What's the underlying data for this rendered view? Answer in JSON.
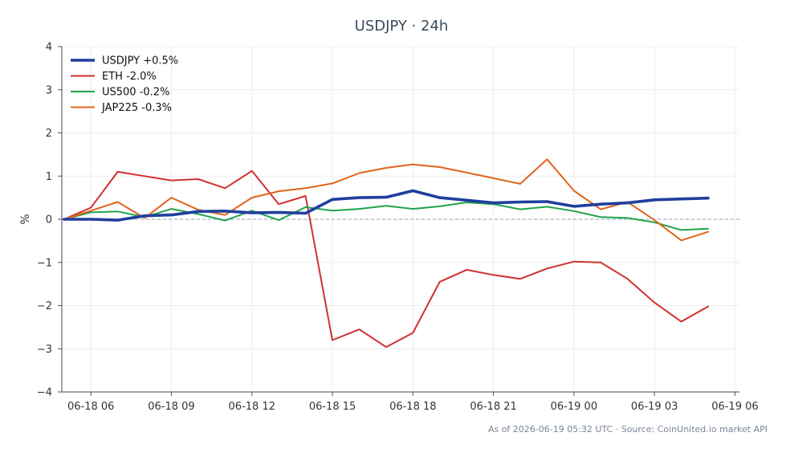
{
  "chart_data": {
    "type": "line",
    "title": "USDJPY · 24h",
    "ylabel": "%",
    "xlabel": "",
    "ylim": [
      -4,
      4
    ],
    "yticks": [
      -4,
      -3,
      -2,
      -1,
      0,
      1,
      2,
      3,
      4
    ],
    "ytick_labels": [
      "−4",
      "−3",
      "−2",
      "−1",
      "0",
      "1",
      "2",
      "3",
      "4"
    ],
    "xlim": [
      "06-18 04:55",
      "06-19 06:10"
    ],
    "xticks": [
      "06-18 06",
      "06-18 09",
      "06-18 12",
      "06-18 15",
      "06-18 18",
      "06-18 21",
      "06-19 00",
      "06-19 03",
      "06-19 06"
    ],
    "grid": true,
    "zero_line": true,
    "legend_position": "top-left",
    "x": [
      "06-18 05:00",
      "06-18 06:00",
      "06-18 07:00",
      "06-18 08:00",
      "06-18 09:00",
      "06-18 10:00",
      "06-18 11:00",
      "06-18 12:00",
      "06-18 13:00",
      "06-18 14:00",
      "06-18 15:00",
      "06-18 16:00",
      "06-18 17:00",
      "06-18 18:00",
      "06-18 19:00",
      "06-18 20:00",
      "06-18 21:00",
      "06-18 22:00",
      "06-18 23:00",
      "06-19 00:00",
      "06-19 01:00",
      "06-19 02:00",
      "06-19 03:00",
      "06-19 04:00",
      "06-19 05:00"
    ],
    "series": [
      {
        "name": "USDJPY +0.5%",
        "color": "#1f3f9e",
        "emphasis": true,
        "values": [
          0.0,
          0.0,
          -0.02,
          0.08,
          0.1,
          0.18,
          0.19,
          0.15,
          0.16,
          0.14,
          0.46,
          0.5,
          0.51,
          0.66,
          0.5,
          0.44,
          0.38,
          0.4,
          0.41,
          0.3,
          0.35,
          0.38,
          0.45,
          0.47,
          0.49
        ]
      },
      {
        "name": "ETH -2.0%",
        "color": "#d03030",
        "values": [
          0.0,
          0.27,
          1.1,
          1.0,
          0.9,
          0.93,
          0.72,
          1.12,
          0.35,
          0.54,
          -2.8,
          -2.55,
          -2.96,
          -2.63,
          -1.45,
          -1.17,
          -1.29,
          -1.38,
          -1.14,
          -0.98,
          -1.0,
          -1.38,
          -1.93,
          -2.37,
          -2.02
        ]
      },
      {
        "name": "US500 -0.2%",
        "color": "#21a24b",
        "values": [
          0.0,
          0.16,
          0.18,
          0.05,
          0.24,
          0.12,
          -0.03,
          0.2,
          -0.02,
          0.28,
          0.2,
          0.24,
          0.31,
          0.24,
          0.3,
          0.39,
          0.35,
          0.23,
          0.29,
          0.19,
          0.05,
          0.03,
          -0.07,
          -0.25,
          -0.22
        ]
      },
      {
        "name": "JAP225 -0.3%",
        "color": "#e0641a",
        "values": [
          0.0,
          0.2,
          0.4,
          0.03,
          0.5,
          0.22,
          0.1,
          0.5,
          0.65,
          0.72,
          0.83,
          1.07,
          1.19,
          1.27,
          1.21,
          1.08,
          0.95,
          0.82,
          1.39,
          0.66,
          0.23,
          0.4,
          -0.02,
          -0.49,
          -0.29
        ]
      }
    ],
    "footer": "As of 2026-06-19 05:32 UTC · Source: CoinUnited.io market API"
  }
}
